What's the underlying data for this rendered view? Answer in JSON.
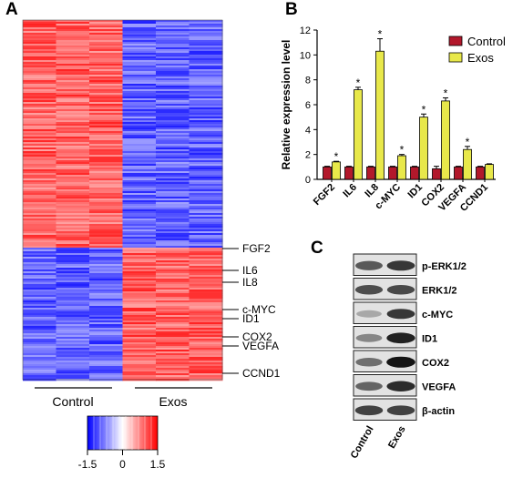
{
  "panels": {
    "a": "A",
    "b": "B",
    "c": "C"
  },
  "heatmap": {
    "genes": [
      "FGF2",
      "IL6",
      "IL8",
      "c-MYC",
      "ID1",
      "COX2",
      "VEGFA",
      "CCND1"
    ],
    "group_labels": [
      "Control",
      "Exos"
    ],
    "colorbar_ticks": [
      "-1.5",
      "0",
      "1.5"
    ],
    "colorbar_values": [
      -1.5,
      0,
      1.5
    ],
    "colors": {
      "low": "#0000ff",
      "mid": "#ffffff",
      "high": "#ff0000"
    }
  },
  "chart_data": {
    "type": "bar",
    "categories": [
      "FGF2",
      "IL6",
      "IL8",
      "c-MYC",
      "ID1",
      "COX2",
      "VEGFA",
      "CCND1"
    ],
    "series": [
      {
        "name": "Control",
        "color": "#b2182b",
        "values": [
          1.0,
          1.0,
          1.0,
          1.0,
          1.0,
          0.85,
          1.0,
          1.0
        ],
        "errors": [
          0.05,
          0.05,
          0.05,
          0.05,
          0.05,
          0.2,
          0.05,
          0.05
        ]
      },
      {
        "name": "Exos",
        "color": "#e8e84a",
        "values": [
          1.4,
          7.2,
          10.3,
          1.9,
          5.0,
          6.3,
          2.4,
          1.2
        ],
        "errors": [
          0.05,
          0.2,
          1.0,
          0.1,
          0.25,
          0.25,
          0.25,
          0.05
        ]
      }
    ],
    "significance": [
      "*",
      "*",
      "*",
      "*",
      "*",
      "*",
      "*",
      ""
    ],
    "ylabel": "Relative expression level",
    "ylim": [
      0,
      12
    ],
    "yticks": [
      0,
      2,
      4,
      6,
      8,
      10,
      12
    ],
    "legend_position": "top-right"
  },
  "western_blot": {
    "proteins": [
      "p-ERK1/2",
      "ERK1/2",
      "c-MYC",
      "ID1",
      "COX2",
      "VEGFA",
      "β-actin"
    ],
    "lanes": [
      "Control",
      "Exos"
    ],
    "band_intensity": [
      [
        0.65,
        0.8
      ],
      [
        0.7,
        0.72
      ],
      [
        0.3,
        0.8
      ],
      [
        0.45,
        0.9
      ],
      [
        0.55,
        0.95
      ],
      [
        0.6,
        0.85
      ],
      [
        0.75,
        0.75
      ]
    ]
  }
}
